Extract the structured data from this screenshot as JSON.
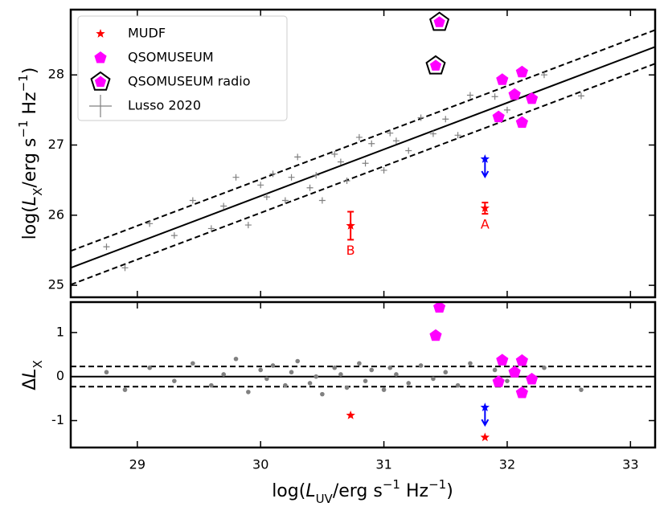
{
  "chart_data": {
    "type": "scatter",
    "xlim": [
      28.46,
      33.2
    ],
    "xticks": [
      29,
      30,
      31,
      32,
      33
    ],
    "xlabel": [
      "log(",
      "L",
      "UV",
      "/erg s",
      "−1",
      " Hz",
      "−1",
      ")"
    ],
    "panels": [
      {
        "ylim": [
          24.83,
          28.93
        ],
        "yticks": [
          25,
          26,
          27,
          28
        ],
        "ylabel": [
          "log(",
          "L",
          "X",
          "/erg s",
          "−1",
          " Hz",
          "−1",
          ")"
        ],
        "legend": "upper left",
        "lines": [
          {
            "style": "solid",
            "x": [
              28.46,
              33.2
            ],
            "y": [
              25.25,
              28.4
            ]
          },
          {
            "style": "dashed",
            "x": [
              28.46,
              33.2
            ],
            "y": [
              25.49,
              28.64
            ]
          },
          {
            "style": "dashed",
            "x": [
              28.46,
              33.2
            ],
            "y": [
              25.01,
              28.16
            ]
          }
        ],
        "series": [
          {
            "name": "Lusso 2020",
            "color": "#808080",
            "marker": "plus",
            "x": [
              28.75,
              28.9,
              29.1,
              29.3,
              29.45,
              29.6,
              29.7,
              29.8,
              29.9,
              30.0,
              30.05,
              30.1,
              30.2,
              30.25,
              30.3,
              30.4,
              30.45,
              30.5,
              30.6,
              30.65,
              30.7,
              30.8,
              30.85,
              30.9,
              31.0,
              31.05,
              31.1,
              31.2,
              31.3,
              31.4,
              31.5,
              31.6,
              31.7,
              31.9,
              32.0,
              32.3,
              32.6
            ],
            "y": [
              25.55,
              25.25,
              25.88,
              25.71,
              26.21,
              25.81,
              26.13,
              26.54,
              25.86,
              26.43,
              26.26,
              26.59,
              26.21,
              26.54,
              26.83,
              26.39,
              26.57,
              26.21,
              26.87,
              26.76,
              26.49,
              27.11,
              26.74,
              27.02,
              26.64,
              27.17,
              27.06,
              26.92,
              27.39,
              27.16,
              27.37,
              27.14,
              27.71,
              27.69,
              27.5,
              28.0,
              27.7
            ]
          },
          {
            "name": "MUDF",
            "color": "#ff0000",
            "marker": "star",
            "x": [
              31.82,
              30.73
            ],
            "y": [
              26.1,
              25.85
            ],
            "yerr": [
              0.08,
              0.2
            ],
            "labels": [
              "A",
              "B"
            ]
          },
          {
            "color": "#0000ff",
            "marker": "star",
            "limit": "upper",
            "x": [
              31.82
            ],
            "y": [
              26.8
            ]
          },
          {
            "name": "QSOMUSEUM",
            "color": "#ff00ff",
            "marker": "pentagon",
            "x": [
              31.93,
              31.96,
              32.06,
              32.12,
              32.12,
              32.2
            ],
            "y": [
              27.4,
              27.93,
              27.72,
              28.04,
              27.32,
              27.66
            ]
          },
          {
            "name": "QSOMUSEUM radio",
            "color": "#ff00ff",
            "marker": "pentagon-radio",
            "x": [
              31.42,
              31.45
            ],
            "y": [
              28.13,
              28.75
            ]
          }
        ]
      },
      {
        "ylim": [
          -1.61,
          1.69
        ],
        "yticks": [
          -1,
          0,
          1
        ],
        "ylabel": [
          "Δ",
          "L",
          "X"
        ],
        "lines": [
          {
            "style": "solid",
            "x": [
              28.46,
              33.2
            ],
            "y": [
              0,
              0
            ]
          },
          {
            "style": "dashed",
            "x": [
              28.46,
              33.2
            ],
            "y": [
              0.23,
              0.23
            ]
          },
          {
            "style": "dashed",
            "x": [
              28.46,
              33.2
            ],
            "y": [
              -0.23,
              -0.23
            ]
          }
        ],
        "series": [
          {
            "color": "#808080",
            "marker": "dot",
            "x": [
              28.75,
              28.9,
              29.1,
              29.3,
              29.45,
              29.6,
              29.7,
              29.8,
              29.9,
              30.0,
              30.05,
              30.1,
              30.2,
              30.25,
              30.3,
              30.4,
              30.45,
              30.5,
              30.6,
              30.65,
              30.7,
              30.8,
              30.85,
              30.9,
              31.0,
              31.05,
              31.1,
              31.2,
              31.3,
              31.4,
              31.5,
              31.6,
              31.7,
              31.9,
              32.0,
              32.3,
              32.6
            ],
            "y": [
              0.1,
              -0.3,
              0.2,
              -0.1,
              0.3,
              -0.2,
              0.05,
              0.4,
              -0.35,
              0.15,
              -0.05,
              0.25,
              -0.2,
              0.1,
              0.35,
              -0.15,
              0.0,
              -0.4,
              0.2,
              0.05,
              -0.25,
              0.3,
              -0.1,
              0.15,
              -0.3,
              0.2,
              0.05,
              -0.15,
              0.25,
              -0.05,
              0.1,
              -0.2,
              0.3,
              0.15,
              -0.1,
              0.2,
              -0.3
            ]
          },
          {
            "color": "#ff0000",
            "marker": "star",
            "x": [
              31.82,
              30.73
            ],
            "y": [
              -1.38,
              -0.88
            ]
          },
          {
            "color": "#0000ff",
            "marker": "star",
            "limit": "upper",
            "x": [
              31.82
            ],
            "y": [
              -0.7
            ]
          },
          {
            "color": "#ff00ff",
            "marker": "pentagon",
            "x": [
              31.42,
              31.45,
              31.93,
              31.96,
              32.06,
              32.12,
              32.12,
              32.2
            ],
            "y": [
              0.93,
              1.57,
              -0.12,
              0.37,
              0.1,
              0.36,
              -0.37,
              -0.06
            ]
          }
        ]
      }
    ]
  }
}
